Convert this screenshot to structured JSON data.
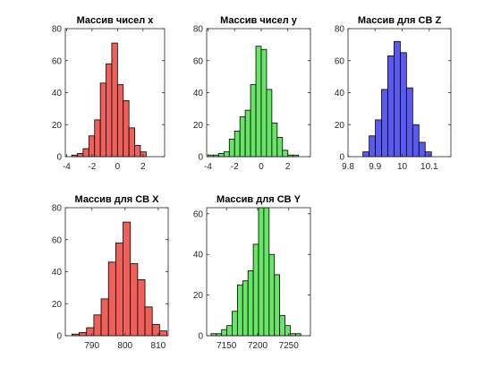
{
  "chart_data": [
    {
      "type": "bar",
      "title": "Массив чисел x",
      "color": "#f0605a",
      "bin_start": -3.6,
      "bin_width": 0.45,
      "values": [
        1,
        2,
        5,
        13,
        23,
        46,
        58,
        71,
        45,
        35,
        18,
        7,
        3
      ],
      "xlim": [
        -4.1,
        3.7
      ],
      "ylim": [
        0,
        80
      ],
      "xticks": [
        -4,
        -2,
        0,
        2
      ],
      "xtick_labels": [
        "-4",
        "-2",
        "0",
        "2"
      ],
      "yticks": [
        0,
        20,
        40,
        60,
        80
      ],
      "ytick_labels": [
        "0",
        "20",
        "40",
        "60",
        "80"
      ]
    },
    {
      "type": "bar",
      "title": "Массив чисел y",
      "color": "#66e566",
      "bin_start": -4.0,
      "bin_width": 0.4,
      "values": [
        1,
        1,
        2,
        3,
        11,
        16,
        25,
        29,
        45,
        69,
        67,
        42,
        21,
        12,
        4,
        1,
        1
      ],
      "xlim": [
        -4.1,
        3.7
      ],
      "ylim": [
        0,
        80
      ],
      "xticks": [
        -4,
        -2,
        0,
        2
      ],
      "xtick_labels": [
        "-4",
        "-2",
        "0",
        "2"
      ],
      "yticks": [
        0,
        20,
        40,
        60,
        80
      ],
      "ytick_labels": [
        "0",
        "20",
        "40",
        "60",
        "80"
      ]
    },
    {
      "type": "bar",
      "title": "Массив для СВ Z",
      "color": "#5a5af0",
      "bin_start": 9.855,
      "bin_width": 0.023,
      "values": [
        3,
        13,
        23,
        42,
        63,
        72,
        65,
        43,
        20,
        9,
        3
      ],
      "xlim": [
        9.8,
        10.18
      ],
      "ylim": [
        0,
        80
      ],
      "xticks": [
        9.8,
        9.9,
        10,
        10.1
      ],
      "xtick_labels": [
        "9.8",
        "9.9",
        "10",
        "10.1"
      ],
      "yticks": [
        0,
        20,
        40,
        60,
        80
      ],
      "ytick_labels": [
        "0",
        "20",
        "40",
        "60",
        "80"
      ]
    },
    {
      "type": "bar",
      "title": "Массив для СВ X",
      "color": "#f0605a",
      "bin_start": 784,
      "bin_width": 2.2,
      "values": [
        1,
        2,
        5,
        13,
        23,
        46,
        58,
        71,
        45,
        35,
        18,
        7,
        3
      ],
      "xlim": [
        782,
        813
      ],
      "ylim": [
        0,
        80
      ],
      "xticks": [
        790,
        800,
        810
      ],
      "xtick_labels": [
        "790",
        "800",
        "810"
      ],
      "yticks": [
        0,
        20,
        40,
        60,
        80
      ],
      "ytick_labels": [
        "0",
        "20",
        "40",
        "60",
        "80"
      ]
    },
    {
      "type": "bar",
      "title": "Массив для СВ Y",
      "color": "#66e566",
      "bin_start": 7125,
      "bin_width": 8.5,
      "values": [
        1,
        1,
        3,
        5,
        12,
        25,
        27,
        32,
        45,
        63,
        63,
        40,
        30,
        10,
        5,
        1,
        1
      ],
      "xlim": [
        7118,
        7285
      ],
      "ylim": [
        0,
        63
      ],
      "xticks": [
        7150,
        7200,
        7250
      ],
      "xtick_labels": [
        "7150",
        "7200",
        "7250"
      ],
      "yticks": [
        0,
        20,
        40,
        60
      ],
      "ytick_labels": [
        "0",
        "20",
        "40",
        "60"
      ]
    }
  ]
}
